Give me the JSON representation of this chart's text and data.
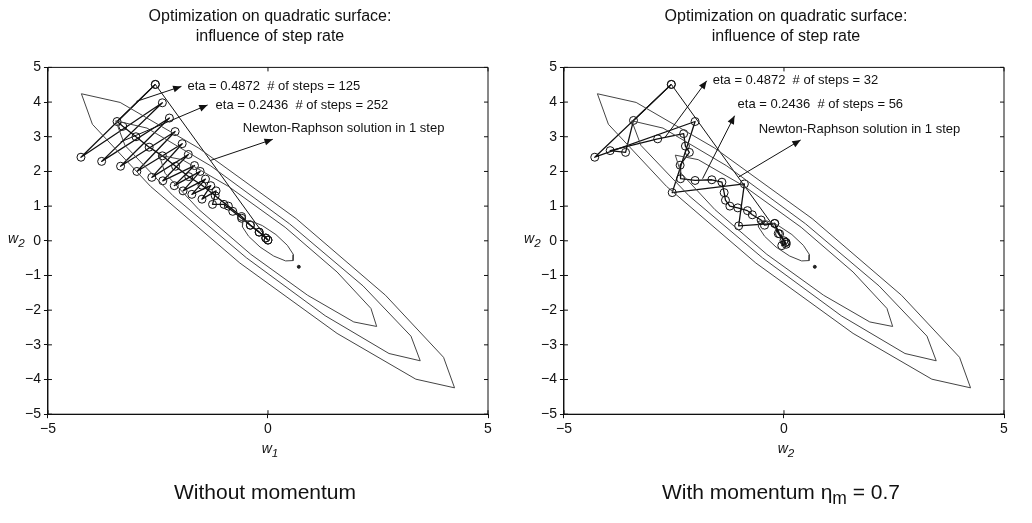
{
  "chart_data": [
    {
      "type": "line",
      "title": "Optimization on quadratic surface:\ninfluence of step rate",
      "xlabel": "w$_{1}$",
      "ylabel": "w$_{2}$",
      "xlim": [
        -5,
        5
      ],
      "ylim": [
        -5,
        5
      ],
      "xticks": [
        -5,
        0,
        5
      ],
      "yticks": [
        -5,
        -4,
        -3,
        -2,
        -1,
        0,
        1,
        2,
        3,
        4,
        5
      ],
      "marker": "circle",
      "series": [
        {
          "color": "#444444",
          "marker": "none",
          "x": [
            -4.24,
            -3.36,
            -1.57,
            0.64,
            2.67,
            3.99,
            4.24
          ],
          "values": [
            4.24,
            3.99,
            2.67,
            0.64,
            -1.57,
            -3.36,
            -4.24
          ]
        },
        {
          "color": "#444444",
          "marker": "none",
          "x": [
            -4.24,
            -3.99,
            -2.67,
            -0.64,
            1.57,
            3.36,
            4.24
          ],
          "values": [
            4.24,
            3.36,
            1.57,
            -0.64,
            -2.67,
            -3.99,
            -4.24
          ]
        },
        {
          "color": "#444444",
          "marker": "none",
          "x": [
            -3.46,
            -2.75,
            -1.3,
            0.49,
            2.16,
            3.25,
            3.46
          ],
          "values": [
            3.46,
            3.25,
            2.16,
            0.49,
            -1.3,
            -2.75,
            -3.46
          ]
        },
        {
          "color": "#444444",
          "marker": "none",
          "x": [
            -3.46,
            -3.25,
            -2.16,
            -0.49,
            1.3,
            2.75,
            3.46
          ],
          "values": [
            3.46,
            2.75,
            1.3,
            -0.49,
            -2.16,
            -3.25,
            -3.46
          ]
        },
        {
          "color": "#444444",
          "marker": "none",
          "x": [
            -2.47,
            -1.95,
            -0.9,
            0.39,
            1.57,
            2.34,
            2.47
          ],
          "values": [
            2.47,
            2.34,
            1.57,
            0.39,
            -0.9,
            -1.95,
            -2.47
          ]
        },
        {
          "color": "#444444",
          "marker": "none",
          "x": [
            -2.47,
            -2.34,
            -1.57,
            -0.39,
            0.9,
            1.95,
            2.47
          ],
          "values": [
            2.47,
            1.95,
            0.9,
            -0.39,
            -1.57,
            -2.34,
            -2.47
          ]
        },
        {
          "color": "#444444",
          "marker": "none",
          "x": [
            -0.57,
            -0.4,
            -0.13,
            0.18,
            0.44,
            0.58,
            0.57
          ],
          "values": [
            0.57,
            0.58,
            0.44,
            0.18,
            -0.13,
            -0.4,
            -0.57
          ]
        },
        {
          "color": "#444444",
          "marker": "none",
          "x": [
            -0.57,
            -0.58,
            -0.44,
            -0.18,
            0.13,
            0.4,
            0.57
          ],
          "values": [
            0.57,
            0.4,
            0.13,
            -0.18,
            -0.44,
            -0.58,
            -0.57
          ]
        },
        {
          "type": "scatter",
          "color": "#222222",
          "marker": "circle",
          "x": [
            0.7
          ],
          "values": [
            -0.75
          ]
        },
        {
          "color": "#111111",
          "x": [
            -2.56,
            -4.25,
            -2.4,
            -3.78,
            -2.24,
            -3.35,
            -2.11,
            -2.98,
            -1.95,
            -2.64,
            -1.81,
            -2.39,
            -1.67,
            -2.13,
            -1.54,
            -1.93,
            -1.42,
            -1.73,
            -1.3,
            -1.5,
            -1.18,
            -1.26,
            -1.0,
            -0.8,
            -0.6,
            -0.4,
            -0.2,
            -0.05,
            0
          ],
          "values": [
            4.51,
            2.41,
            3.98,
            2.29,
            3.54,
            2.15,
            3.15,
            2.0,
            2.8,
            1.83,
            2.49,
            1.73,
            2.17,
            1.59,
            2.0,
            1.44,
            1.78,
            1.34,
            1.59,
            1.2,
            1.44,
            1.05,
            1.05,
            0.85,
            0.65,
            0.45,
            0.25,
            0.08,
            0.02
          ]
        },
        {
          "color": "#111111",
          "x": [
            -2.56,
            -3.43,
            -3.3,
            -3.0,
            -2.7,
            -2.4,
            -2.1,
            -1.8,
            -1.5,
            -1.2,
            -0.9,
            -0.6,
            -0.4,
            -0.2,
            -0.05,
            0
          ],
          "values": [
            4.51,
            3.44,
            3.3,
            3.0,
            2.7,
            2.45,
            2.15,
            1.85,
            1.6,
            1.3,
            1.0,
            0.7,
            0.45,
            0.25,
            0.08,
            0.02
          ]
        },
        {
          "color": "#111111",
          "marker": "none",
          "x": [
            -2.56,
            0
          ],
          "values": [
            4.51,
            0.02
          ]
        }
      ],
      "annotations": [
        {
          "text": "eta = 0.4872  # of steps = 125",
          "x": -2.99,
          "y": 4.02
        },
        {
          "text": "eta = 0.2436  # of steps = 252",
          "x": -3.35,
          "y": 2.85
        },
        {
          "text": "Newton-Raphson solution in 1 step",
          "x": -1.3,
          "y": 2.32
        },
        "Without momentum"
      ]
    },
    {
      "type": "line",
      "title": "Optimization on quadratic surface:\ninfluence of step rate",
      "xlabel": "w$_{2}$",
      "ylabel": "w$_{2}$",
      "xlim": [
        -5,
        5
      ],
      "ylim": [
        -5,
        5
      ],
      "xticks": [
        -5,
        0,
        5
      ],
      "yticks": [
        -5,
        -4,
        -3,
        -2,
        -1,
        0,
        1,
        2,
        3,
        4,
        5
      ],
      "marker": "circle",
      "series": [
        {
          "color": "#444444",
          "marker": "none",
          "x": [
            -4.24,
            -3.36,
            -1.57,
            0.64,
            2.67,
            3.99,
            4.24
          ],
          "values": [
            4.24,
            3.99,
            2.67,
            0.64,
            -1.57,
            -3.36,
            -4.24
          ]
        },
        {
          "color": "#444444",
          "marker": "none",
          "x": [
            -4.24,
            -3.99,
            -2.67,
            -0.64,
            1.57,
            3.36,
            4.24
          ],
          "values": [
            4.24,
            3.36,
            1.57,
            -0.64,
            -2.67,
            -3.99,
            -4.24
          ]
        },
        {
          "color": "#444444",
          "marker": "none",
          "x": [
            -3.46,
            -2.75,
            -1.3,
            0.49,
            2.16,
            3.25,
            3.46
          ],
          "values": [
            3.46,
            3.25,
            2.16,
            0.49,
            -1.3,
            -2.75,
            -3.46
          ]
        },
        {
          "color": "#444444",
          "marker": "none",
          "x": [
            -3.46,
            -3.25,
            -2.16,
            -0.49,
            1.3,
            2.75,
            3.46
          ],
          "values": [
            3.46,
            2.75,
            1.3,
            -0.49,
            -2.16,
            -3.25,
            -3.46
          ]
        },
        {
          "color": "#444444",
          "marker": "none",
          "x": [
            -2.47,
            -1.95,
            -0.9,
            0.39,
            1.57,
            2.34,
            2.47
          ],
          "values": [
            2.47,
            2.34,
            1.57,
            0.39,
            -0.9,
            -1.95,
            -2.47
          ]
        },
        {
          "color": "#444444",
          "marker": "none",
          "x": [
            -2.47,
            -2.34,
            -1.57,
            -0.39,
            0.9,
            1.95,
            2.47
          ],
          "values": [
            2.47,
            1.95,
            0.9,
            -0.39,
            -1.57,
            -2.34,
            -2.47
          ]
        },
        {
          "color": "#444444",
          "marker": "none",
          "x": [
            -0.57,
            -0.4,
            -0.13,
            0.18,
            0.44,
            0.58,
            0.57
          ],
          "values": [
            0.57,
            0.58,
            0.44,
            0.18,
            -0.13,
            -0.4,
            -0.57
          ]
        },
        {
          "color": "#444444",
          "marker": "none",
          "x": [
            -0.57,
            -0.58,
            -0.44,
            -0.18,
            0.13,
            0.4,
            0.57
          ],
          "values": [
            0.57,
            0.4,
            0.13,
            -0.18,
            -0.44,
            -0.58,
            -0.57
          ]
        },
        {
          "type": "scatter",
          "color": "#222222",
          "marker": "circle",
          "x": [
            0.7
          ],
          "values": [
            -0.75
          ]
        },
        {
          "color": "#111111",
          "x": [
            -2.56,
            -4.3,
            -2.02,
            -2.54,
            -0.9,
            -1.03,
            -0.21,
            -0.1,
            0.05,
            0
          ],
          "values": [
            4.51,
            2.41,
            3.44,
            1.39,
            1.64,
            0.43,
            0.5,
            0.2,
            -0.1,
            0
          ]
        },
        {
          "color": "#111111",
          "x": [
            -2.56,
            -3.42,
            -3.6,
            -3.95,
            -2.87,
            -2.28,
            -2.24,
            -2.15,
            -2.36,
            -2.35,
            -2.02,
            -1.64,
            -1.41,
            -1.36,
            -1.33,
            -1.23,
            -1.05,
            -0.83,
            -0.72,
            -0.52,
            -0.44,
            -0.21,
            -0.13,
            0.03,
            -0.05,
            0.05
          ],
          "values": [
            4.51,
            3.47,
            2.55,
            2.6,
            2.94,
            3.09,
            2.73,
            2.55,
            2.18,
            1.79,
            1.74,
            1.76,
            1.69,
            1.39,
            1.17,
            1.0,
            0.95,
            0.87,
            0.75,
            0.6,
            0.45,
            0.5,
            0.21,
            -0.04,
            -0.14,
            -0.05
          ]
        },
        {
          "color": "#111111",
          "marker": "none",
          "x": [
            -2.56,
            0
          ],
          "values": [
            4.51,
            0
          ]
        }
      ],
      "annotations": [
        {
          "text": "eta = 0.4872  # of steps = 32",
          "x": -2.71,
          "y": 2.97
        },
        {
          "text": "eta = 0.2436  # of steps = 56",
          "x": -1.85,
          "y": 1.79
        },
        {
          "text": "Newton-Raphson solution in 1 step",
          "x": -1.03,
          "y": 1.84
        },
        "With momentum η$_{m}$ = 0.7"
      ]
    }
  ]
}
